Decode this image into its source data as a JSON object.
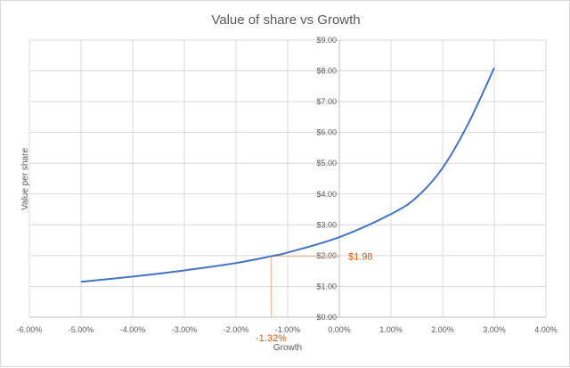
{
  "chart_data": {
    "type": "line",
    "title": "Value of share vs Growth",
    "xlabel": "Growth",
    "ylabel": "Value per share",
    "xlim": [
      -0.06,
      0.04
    ],
    "ylim": [
      0,
      9
    ],
    "grid": true,
    "x_ticks": [
      -0.06,
      -0.05,
      -0.04,
      -0.03,
      -0.02,
      -0.01,
      0.0,
      0.01,
      0.02,
      0.03,
      0.04
    ],
    "x_tick_labels": [
      "-6.00%",
      "-5.00%",
      "-4.00%",
      "-3.00%",
      "-2.00%",
      "-1.00%",
      "0.00%",
      "1.00%",
      "2.00%",
      "3.00%",
      "4.00%"
    ],
    "y_ticks": [
      0,
      1,
      2,
      3,
      4,
      5,
      6,
      7,
      8,
      9
    ],
    "y_tick_labels": [
      "$0.00",
      "$1.00",
      "$2.00",
      "$3.00",
      "$4.00",
      "$5.00",
      "$6.00",
      "$7.00",
      "$8.00",
      "$9.00"
    ],
    "series": [
      {
        "color": "#4472c4",
        "x": [
          -0.05,
          -0.04,
          -0.03,
          -0.02,
          -0.0132,
          -0.01,
          0.0,
          0.01,
          0.015,
          0.02,
          0.025,
          0.03
        ],
        "y": [
          1.15,
          1.32,
          1.52,
          1.76,
          1.98,
          2.1,
          2.6,
          3.35,
          3.9,
          4.85,
          6.3,
          8.1
        ]
      }
    ],
    "annotations": {
      "color": "#c55a11",
      "guide_color": "#f4b183",
      "point": {
        "x": -0.0132,
        "y": 1.98
      },
      "y_label": "$1.98",
      "x_label": "-1.32%"
    }
  }
}
